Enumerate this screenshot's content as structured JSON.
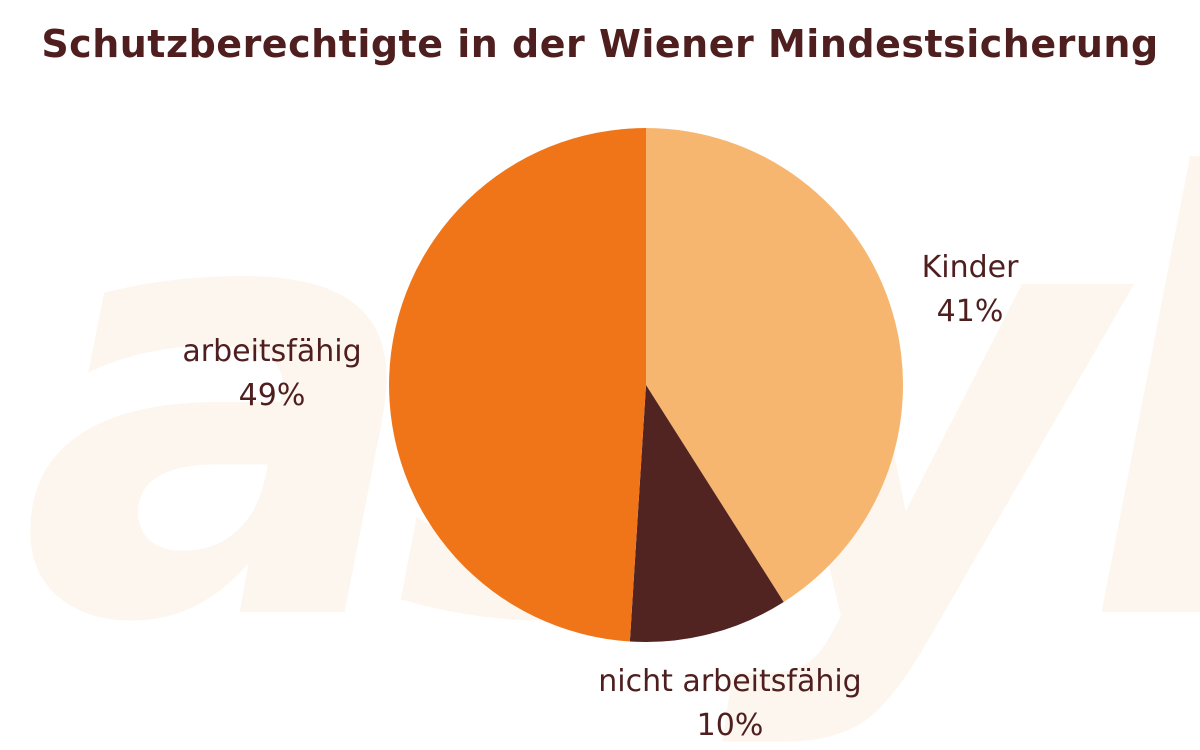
{
  "colors": {
    "background": "#ffffff",
    "title": "#4f1f1f",
    "label": "#4f1f1f",
    "watermark": "#fdf4ea"
  },
  "watermark_text": "asyl",
  "chart_data": {
    "type": "pie",
    "title": "Schutzberechtigte in der Wiener Mindestsicherung",
    "start": "12 o'clock",
    "direction": "clockwise",
    "slices": [
      {
        "label": "Kinder",
        "value": 41,
        "display": "41%",
        "color": "#f7b670"
      },
      {
        "label": "nicht arbeitsfähig",
        "value": 10,
        "display": "10%",
        "color": "#512321"
      },
      {
        "label": "arbeitsfähig",
        "value": 49,
        "display": "49%",
        "color": "#f07519"
      }
    ]
  }
}
